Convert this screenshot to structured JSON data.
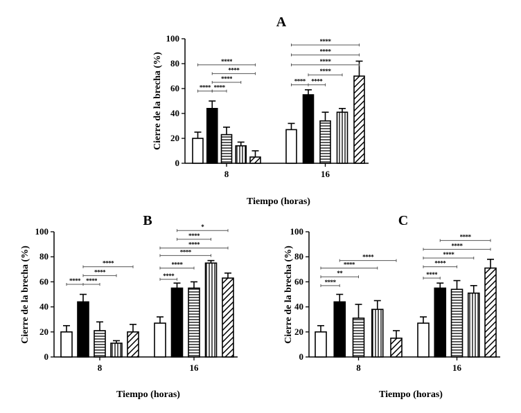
{
  "figure": {
    "colors": {
      "ink": "#000000",
      "background": "#ffffff",
      "bracket": "#555555"
    },
    "patterns": [
      "open",
      "solid",
      "horizontal-lines",
      "vertical-lines",
      "diagonal-hatch"
    ]
  },
  "chart_data": [
    {
      "id": "A",
      "type": "bar",
      "title": "A",
      "xlabel": "Tiempo (horas)",
      "ylabel": "Cierre de la brecha (%)",
      "ylim": [
        0,
        100
      ],
      "yticks": [
        "0",
        "20",
        "40",
        "60",
        "80",
        "100"
      ],
      "categories": [
        "8",
        "16"
      ],
      "series": [
        {
          "name": "open",
          "pattern": "open",
          "values": [
            20,
            27
          ],
          "errors": [
            5,
            5
          ]
        },
        {
          "name": "solid",
          "pattern": "solid",
          "values": [
            44,
            55
          ],
          "errors": [
            6,
            4
          ]
        },
        {
          "name": "horizontal",
          "pattern": "horizontal-lines",
          "values": [
            23,
            34
          ],
          "errors": [
            6,
            7
          ]
        },
        {
          "name": "vertical",
          "pattern": "vertical-lines",
          "values": [
            14,
            41
          ],
          "errors": [
            3,
            3
          ]
        },
        {
          "name": "diagonal",
          "pattern": "diagonal-hatch",
          "values": [
            5,
            70
          ],
          "errors": [
            5,
            12
          ]
        }
      ],
      "significance": [
        {
          "group": 0,
          "from": 0,
          "to": 1,
          "y": 58,
          "label": "****"
        },
        {
          "group": 0,
          "from": 1,
          "to": 2,
          "y": 58,
          "label": "****"
        },
        {
          "group": 0,
          "from": 1,
          "to": 3,
          "y": 65,
          "label": "****"
        },
        {
          "group": 0,
          "from": 1,
          "to": 4,
          "y": 72,
          "label": "****"
        },
        {
          "group": 0,
          "from": 0,
          "to": 4,
          "y": 79,
          "label": "****"
        },
        {
          "group": 1,
          "from": 0,
          "to": 1,
          "y": 63,
          "label": "****"
        },
        {
          "group": 1,
          "from": 1,
          "to": 2,
          "y": 63,
          "label": "****"
        },
        {
          "group": 1,
          "from": 1,
          "to": 3,
          "y": 71,
          "label": "****"
        },
        {
          "group": 1,
          "from": 0,
          "to": 4,
          "y": 79,
          "label": "****"
        },
        {
          "group": 1,
          "from": 0,
          "to": 4,
          "y": 87,
          "label": "****"
        },
        {
          "group": 1,
          "from": 0,
          "to": 4,
          "y": 95,
          "label": "****"
        }
      ]
    },
    {
      "id": "B",
      "type": "bar",
      "title": "B",
      "xlabel": "Tiempo (horas)",
      "ylabel": "Cierre de la brecha (%)",
      "ylim": [
        0,
        100
      ],
      "yticks": [
        "0",
        "20",
        "40",
        "60",
        "80",
        "100"
      ],
      "categories": [
        "8",
        "16"
      ],
      "series": [
        {
          "name": "open",
          "pattern": "open",
          "values": [
            20,
            27
          ],
          "errors": [
            5,
            5
          ]
        },
        {
          "name": "solid",
          "pattern": "solid",
          "values": [
            44,
            55
          ],
          "errors": [
            6,
            4
          ]
        },
        {
          "name": "horizontal",
          "pattern": "horizontal-lines",
          "values": [
            21,
            55
          ],
          "errors": [
            7,
            5
          ]
        },
        {
          "name": "vertical",
          "pattern": "vertical-lines",
          "values": [
            11,
            75
          ],
          "errors": [
            2,
            2
          ]
        },
        {
          "name": "diagonal",
          "pattern": "diagonal-hatch",
          "values": [
            20,
            63
          ],
          "errors": [
            6,
            4
          ]
        }
      ],
      "significance": [
        {
          "group": 0,
          "from": 0,
          "to": 1,
          "y": 58,
          "label": "****"
        },
        {
          "group": 0,
          "from": 1,
          "to": 2,
          "y": 58,
          "label": "****"
        },
        {
          "group": 0,
          "from": 1,
          "to": 3,
          "y": 65,
          "label": "****"
        },
        {
          "group": 0,
          "from": 1,
          "to": 4,
          "y": 72,
          "label": "****"
        },
        {
          "group": 1,
          "from": 0,
          "to": 1,
          "y": 62,
          "label": "****"
        },
        {
          "group": 1,
          "from": 0,
          "to": 2,
          "y": 71,
          "label": "****"
        },
        {
          "group": 1,
          "from": 0,
          "to": 3,
          "y": 81,
          "label": "****"
        },
        {
          "group": 1,
          "from": 0,
          "to": 4,
          "y": 87,
          "label": "****"
        },
        {
          "group": 1,
          "from": 1,
          "to": 3,
          "y": 94,
          "label": "****"
        },
        {
          "group": 1,
          "from": 1,
          "to": 4,
          "y": 101,
          "label": "*"
        }
      ]
    },
    {
      "id": "C",
      "type": "bar",
      "title": "C",
      "xlabel": "Tiempo (horas)",
      "ylabel": "Cierre de la brecha (%)",
      "ylim": [
        0,
        100
      ],
      "yticks": [
        "0",
        "20",
        "40",
        "60",
        "80",
        "100"
      ],
      "categories": [
        "8",
        "16"
      ],
      "series": [
        {
          "name": "open",
          "pattern": "open",
          "values": [
            20,
            27
          ],
          "errors": [
            5,
            5
          ]
        },
        {
          "name": "solid",
          "pattern": "solid",
          "values": [
            44,
            55
          ],
          "errors": [
            6,
            4
          ]
        },
        {
          "name": "horizontal",
          "pattern": "horizontal-lines",
          "values": [
            31,
            54
          ],
          "errors": [
            11,
            7
          ]
        },
        {
          "name": "vertical",
          "pattern": "vertical-lines",
          "values": [
            38,
            51
          ],
          "errors": [
            7,
            6
          ]
        },
        {
          "name": "diagonal",
          "pattern": "diagonal-hatch",
          "values": [
            15,
            71
          ],
          "errors": [
            6,
            7
          ]
        }
      ],
      "significance": [
        {
          "group": 0,
          "from": 0,
          "to": 1,
          "y": 57,
          "label": "****"
        },
        {
          "group": 0,
          "from": 0,
          "to": 2,
          "y": 64,
          "label": "**"
        },
        {
          "group": 0,
          "from": 0,
          "to": 3,
          "y": 71,
          "label": "****"
        },
        {
          "group": 0,
          "from": 1,
          "to": 4,
          "y": 77,
          "label": "****"
        },
        {
          "group": 1,
          "from": 0,
          "to": 1,
          "y": 63,
          "label": "****"
        },
        {
          "group": 1,
          "from": 0,
          "to": 2,
          "y": 72,
          "label": "****"
        },
        {
          "group": 1,
          "from": 0,
          "to": 3,
          "y": 79,
          "label": "****"
        },
        {
          "group": 1,
          "from": 0,
          "to": 4,
          "y": 86,
          "label": "****"
        },
        {
          "group": 1,
          "from": 1,
          "to": 4,
          "y": 93,
          "label": "****"
        }
      ]
    }
  ]
}
